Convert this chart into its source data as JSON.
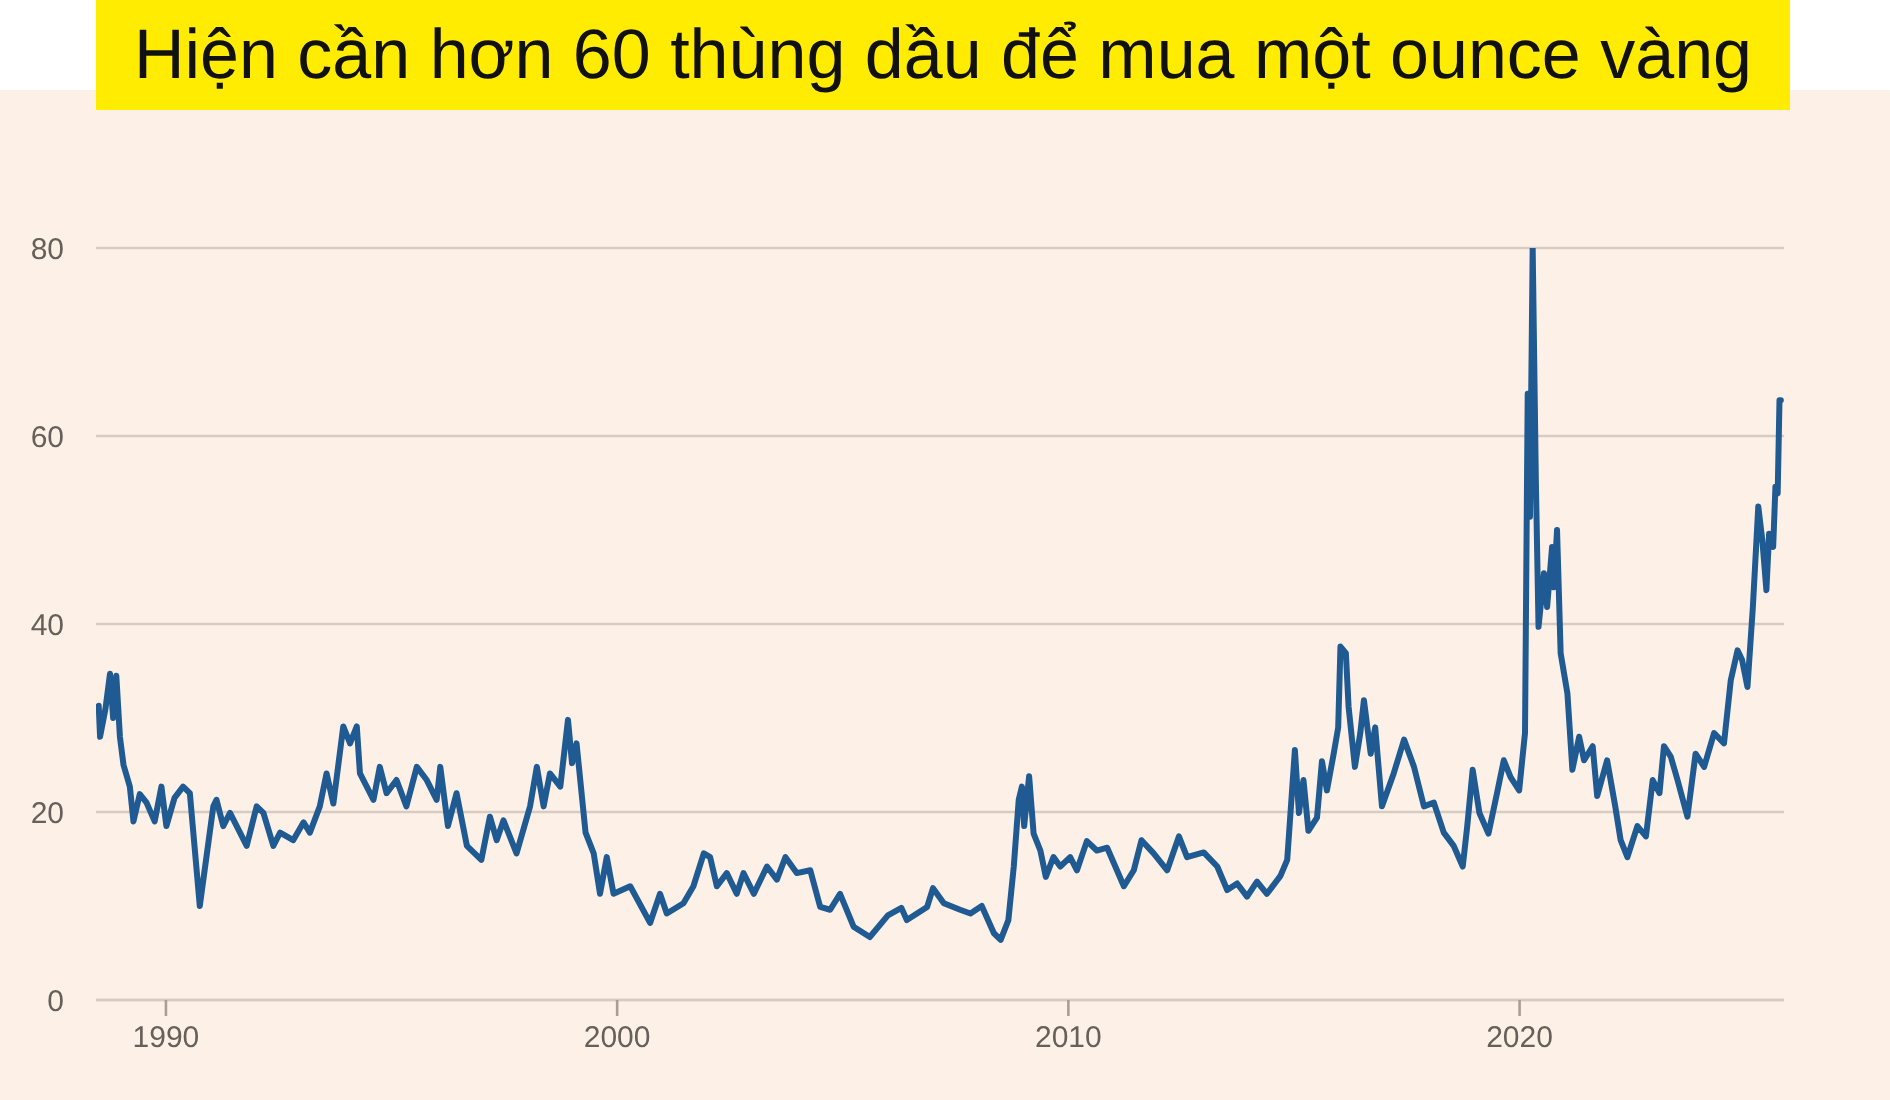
{
  "chart_data": {
    "type": "line",
    "title": "Hiện cần hơn 60 thùng dầu để mua một ounce vàng",
    "x": [
      1988.51,
      1988.54,
      1988.66,
      1988.76,
      1988.83,
      1988.9,
      1988.98,
      1989.06,
      1989.2,
      1989.28,
      1989.42,
      1989.57,
      1989.75,
      1989.9,
      1990.01,
      1990.19,
      1990.38,
      1990.53,
      1990.75,
      1991.05,
      1991.12,
      1991.27,
      1991.42,
      1991.79,
      1992.01,
      1992.16,
      1992.38,
      1992.53,
      1992.82,
      1993.05,
      1993.19,
      1993.41,
      1993.56,
      1993.71,
      1993.93,
      1994.08,
      1994.23,
      1994.3,
      1994.6,
      1994.74,
      1994.89,
      1995.11,
      1995.33,
      1995.56,
      1995.78,
      1996.0,
      1996.08,
      1996.25,
      1996.44,
      1996.67,
      1996.99,
      1997.18,
      1997.33,
      1997.48,
      1997.77,
      1998.07,
      1998.22,
      1998.37,
      1998.51,
      1998.74,
      1998.91,
      1999.0,
      1999.1,
      1999.3,
      1999.48,
      1999.62,
      1999.77,
      1999.92,
      2000.29,
      2000.73,
      2000.95,
      2001.1,
      2001.47,
      2001.69,
      2001.92,
      2002.06,
      2002.21,
      2002.43,
      2002.65,
      2002.8,
      2003.03,
      2003.32,
      2003.54,
      2003.73,
      2003.98,
      2004.28,
      2004.5,
      2004.72,
      2004.94,
      2005.24,
      2005.6,
      2006.0,
      2006.3,
      2006.42,
      2006.87,
      2007.0,
      2007.24,
      2007.6,
      2007.83,
      2008.08,
      2008.35,
      2008.5,
      2008.67,
      2008.79,
      2008.9,
      2008.97,
      2009.02,
      2009.13,
      2009.23,
      2009.38,
      2009.5,
      2009.67,
      2009.82,
      2010.04,
      2010.19,
      2010.41,
      2010.63,
      2010.86,
      2011.23,
      2011.45,
      2011.62,
      2011.89,
      2012.19,
      2012.45,
      2012.63,
      2013.0,
      2013.3,
      2013.52,
      2013.74,
      2013.96,
      2014.18,
      2014.4,
      2014.7,
      2014.85,
      2015.02,
      2015.11,
      2015.21,
      2015.32,
      2015.51,
      2015.62,
      2015.73,
      2015.88,
      2015.98,
      2016.03,
      2016.15,
      2016.21,
      2016.35,
      2016.47,
      2016.55,
      2016.7,
      2016.8,
      2016.95,
      2017.21,
      2017.44,
      2017.66,
      2017.88,
      2018.1,
      2018.32,
      2018.54,
      2018.74,
      2018.84,
      2018.96,
      2019.11,
      2019.31,
      2019.5,
      2019.65,
      2019.8,
      2019.99,
      2020.12,
      2020.18,
      2020.23,
      2020.29,
      2020.36,
      2020.42,
      2020.54,
      2020.61,
      2020.72,
      2020.76,
      2020.83,
      2020.91,
      2021.06,
      2021.17,
      2021.32,
      2021.43,
      2021.62,
      2021.72,
      2021.94,
      2022.12,
      2022.24,
      2022.39,
      2022.61,
      2022.8,
      2022.95,
      2023.1,
      2023.2,
      2023.35,
      2023.5,
      2023.72,
      2023.9,
      2024.09,
      2024.31,
      2024.53,
      2024.68,
      2024.83,
      2024.93,
      2025.05,
      2025.17,
      2025.29,
      2025.38,
      2025.47,
      2025.53,
      2025.62,
      2025.67,
      2025.72,
      2025.76,
      2025.79
    ],
    "series": [
      {
        "color": "#205a92",
        "values": [
          31.3,
          28.0,
          31.0,
          34.7,
          30.0,
          34.5,
          28.0,
          25.0,
          22.7,
          19.0,
          21.9,
          21.0,
          19.0,
          22.7,
          18.5,
          21.5,
          22.7,
          22.0,
          10.0,
          20.6,
          21.3,
          18.5,
          19.9,
          16.4,
          20.6,
          19.9,
          16.4,
          17.8,
          17.0,
          18.9,
          17.8,
          20.6,
          24.1,
          20.9,
          29.1,
          27.3,
          29.1,
          24.1,
          21.3,
          24.8,
          22.0,
          23.4,
          20.6,
          24.8,
          23.4,
          21.3,
          24.8,
          18.5,
          22.0,
          16.4,
          14.9,
          19.5,
          17.0,
          19.1,
          15.6,
          20.6,
          24.8,
          20.6,
          24.1,
          22.7,
          29.8,
          25.2,
          27.3,
          17.8,
          15.6,
          11.3,
          15.2,
          11.3,
          12.1,
          8.2,
          11.3,
          9.2,
          10.3,
          12.1,
          15.6,
          15.2,
          12.1,
          13.5,
          11.3,
          13.5,
          11.3,
          14.2,
          12.8,
          15.2,
          13.5,
          13.8,
          9.9,
          9.6,
          11.3,
          7.8,
          6.7,
          9.0,
          9.8,
          8.5,
          9.9,
          11.9,
          10.3,
          9.6,
          9.2,
          10.0,
          7.1,
          6.4,
          8.5,
          14.2,
          21.3,
          22.7,
          18.5,
          23.8,
          17.7,
          15.9,
          13.1,
          15.2,
          14.2,
          15.2,
          13.8,
          16.9,
          15.9,
          16.2,
          12.1,
          13.8,
          17.0,
          15.6,
          13.8,
          17.4,
          15.2,
          15.7,
          14.2,
          11.7,
          12.4,
          11.0,
          12.6,
          11.3,
          13.2,
          14.9,
          26.6,
          19.9,
          23.4,
          18.0,
          19.4,
          25.4,
          22.3,
          26.2,
          29.0,
          37.6,
          36.9,
          31.2,
          24.8,
          28.4,
          31.9,
          26.2,
          29.0,
          20.6,
          24.1,
          27.7,
          24.8,
          20.6,
          21.0,
          17.8,
          16.4,
          14.2,
          18.5,
          24.5,
          19.9,
          17.7,
          22.0,
          25.5,
          23.7,
          22.3,
          28.4,
          64.5,
          51.4,
          80.0,
          55.4,
          39.7,
          45.4,
          41.8,
          48.2,
          43.9,
          50.0,
          36.9,
          32.6,
          24.5,
          28.0,
          25.5,
          27.0,
          21.7,
          25.5,
          20.6,
          17.0,
          15.2,
          18.5,
          17.4,
          23.4,
          22.0,
          27.0,
          25.9,
          23.4,
          19.5,
          26.2,
          24.8,
          28.4,
          27.3,
          34.0,
          37.2,
          36.2,
          33.3,
          41.8,
          52.5,
          48.9,
          43.6,
          49.6,
          48.2,
          54.6,
          53.9,
          63.8,
          63.8
        ]
      }
    ],
    "xlim": [
      1988.45,
      2025.86
    ],
    "xticks": [
      1990,
      2000,
      2010,
      2020
    ],
    "ylim": [
      0,
      80
    ],
    "yticks": [
      0,
      20,
      40,
      60,
      80
    ],
    "grid": "y"
  }
}
